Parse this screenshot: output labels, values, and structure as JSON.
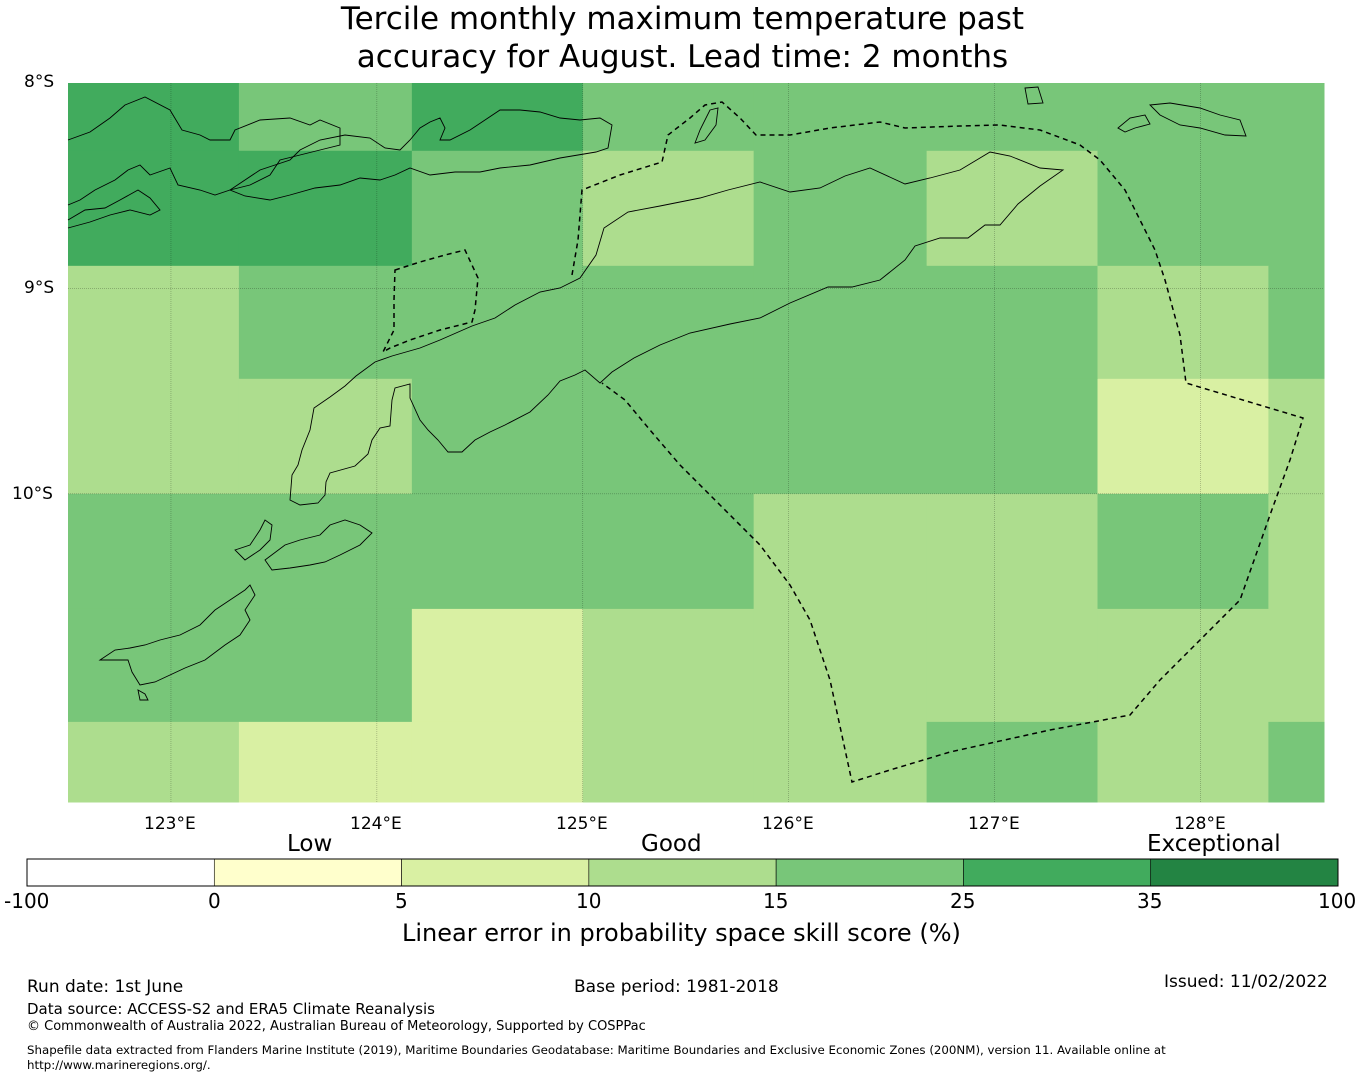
{
  "title": {
    "line1": "Tercile monthly maximum temperature past",
    "line2": "accuracy for August. Lead time: 2 months"
  },
  "map": {
    "lat_labels": [
      "8°S",
      "9°S",
      "10°S"
    ],
    "lon_labels": [
      "123°E",
      "124°E",
      "125°E",
      "126°E",
      "127°E",
      "128°E"
    ],
    "lon_range": [
      122.5,
      128.6
    ],
    "lat_range": [
      -8.0,
      -11.5
    ],
    "grid_lon_edges": [
      122.5,
      123.33,
      124.17,
      125.0,
      125.83,
      126.67,
      127.5,
      128.33,
      128.6
    ],
    "grid_lat_edges": [
      -8.0,
      -8.33,
      -8.89,
      -9.44,
      -10.0,
      -10.56,
      -11.11,
      -11.5
    ],
    "grid_skill_scores": [
      [
        30,
        20,
        30,
        20,
        20,
        20,
        20,
        20
      ],
      [
        30,
        30,
        20,
        12,
        20,
        12,
        20,
        20
      ],
      [
        12,
        20,
        20,
        20,
        20,
        20,
        12,
        20
      ],
      [
        12,
        12,
        20,
        20,
        20,
        20,
        7,
        12
      ],
      [
        20,
        20,
        20,
        20,
        12,
        12,
        20,
        12
      ],
      [
        20,
        20,
        7,
        12,
        12,
        12,
        12,
        12
      ],
      [
        12,
        7,
        7,
        12,
        12,
        20,
        12,
        20
      ]
    ]
  },
  "colorbar": {
    "category_labels": [
      "Low",
      "Good",
      "Exceptional"
    ],
    "ticks": [
      "-100",
      "0",
      "5",
      "10",
      "15",
      "25",
      "35",
      "100"
    ],
    "colors": [
      "#ffffff",
      "#ffffcc",
      "#d9f0a3",
      "#addd8e",
      "#78c679",
      "#41ab5d",
      "#238443"
    ],
    "label": "Linear error in probability space skill score (%)"
  },
  "footer": {
    "run_date": "Run date: 1st June",
    "base_period": "Base period: 1981-2018",
    "issued": "Issued: 11/02/2022",
    "data_source": "Data source: ACCESS-S2 and ERA5 Climate Reanalysis",
    "copyright": "© Commonwealth of Australia 2022, Australian Bureau of Meteorology, Supported by COSPPac",
    "shapefile_line1": "Shapefile data extracted from Flanders Marine Institute (2019), Maritime Boundaries Geodatabase: Maritime Boundaries and Exclusive Economic Zones (200NM), version 11. Available online at",
    "shapefile_line2": "http://www.marineregions.org/."
  }
}
